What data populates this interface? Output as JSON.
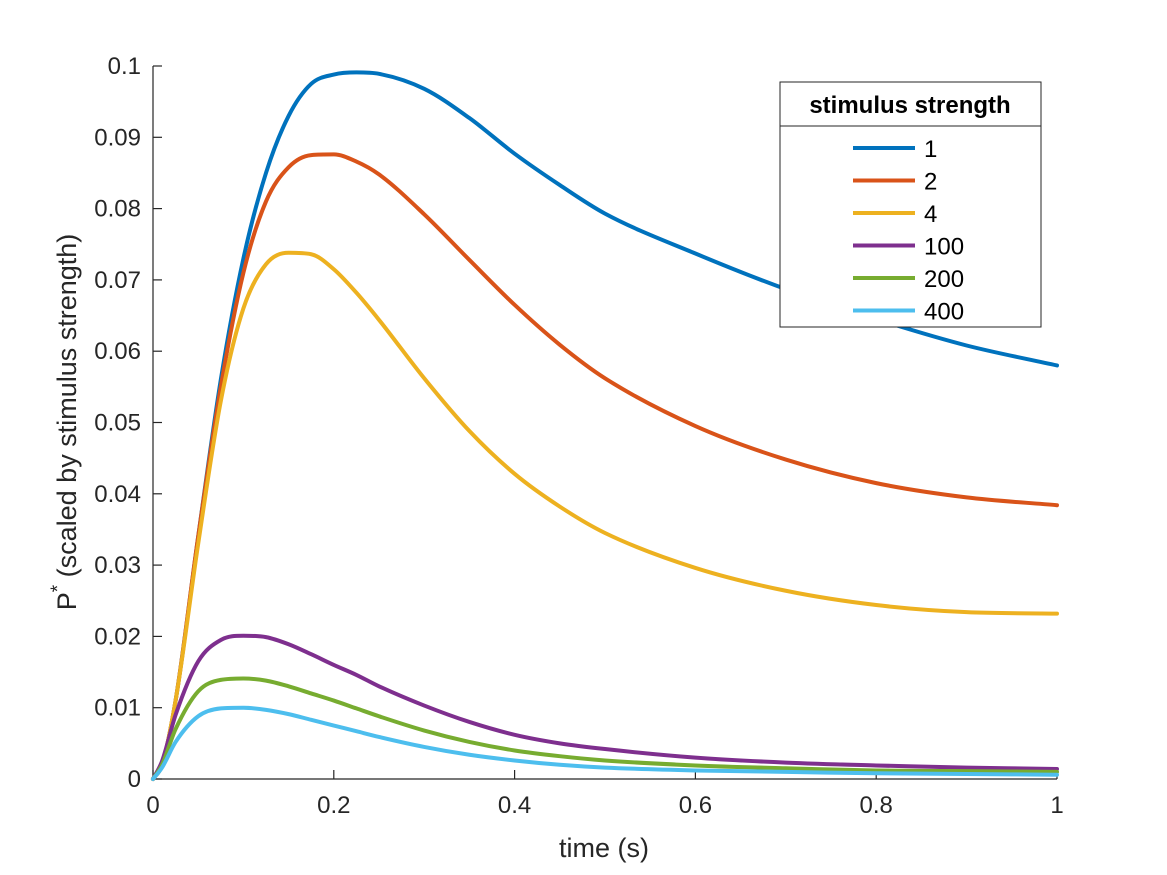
{
  "chart_data": {
    "type": "line",
    "title": "",
    "xlabel": "time (s)",
    "ylabel_main": "P",
    "ylabel_sup": "*",
    "ylabel_rest": " (scaled by stimulus strength)",
    "xlim": [
      0,
      1
    ],
    "ylim": [
      0,
      0.1
    ],
    "xticks": [
      0,
      0.2,
      0.4,
      0.6,
      0.8,
      1
    ],
    "xtick_labels": [
      "0",
      "0.2",
      "0.4",
      "0.6",
      "0.8",
      "1"
    ],
    "yticks": [
      0,
      0.01,
      0.02,
      0.03,
      0.04,
      0.05,
      0.06,
      0.07,
      0.08,
      0.09,
      0.1
    ],
    "ytick_labels": [
      "0",
      "0.01",
      "0.02",
      "0.03",
      "0.04",
      "0.05",
      "0.06",
      "0.07",
      "0.08",
      "0.09",
      "0.1"
    ],
    "grid": false,
    "legend": {
      "title": "stimulus strength",
      "placement": "top-right"
    },
    "x": [
      0,
      0.01,
      0.025,
      0.05,
      0.075,
      0.1,
      0.125,
      0.15,
      0.175,
      0.2,
      0.225,
      0.25,
      0.3,
      0.35,
      0.4,
      0.45,
      0.5,
      0.6,
      0.7,
      0.8,
      0.9,
      1.0
    ],
    "series": [
      {
        "name": "1",
        "color": "#0072BD",
        "values": [
          0,
          0.002,
          0.011,
          0.034,
          0.056,
          0.073,
          0.085,
          0.093,
          0.0975,
          0.0988,
          0.0991,
          0.0989,
          0.0968,
          0.0927,
          0.0877,
          0.0833,
          0.0793,
          0.0737,
          0.0687,
          0.0645,
          0.0608,
          0.058
        ]
      },
      {
        "name": "2",
        "color": "#D95319",
        "values": [
          0,
          0.002,
          0.011,
          0.034,
          0.055,
          0.071,
          0.081,
          0.0858,
          0.0875,
          0.0876,
          0.0866,
          0.0848,
          0.0792,
          0.0728,
          0.0665,
          0.0609,
          0.0562,
          0.0495,
          0.0448,
          0.0415,
          0.0395,
          0.0384
        ]
      },
      {
        "name": "4",
        "color": "#EDB120",
        "values": [
          0,
          0.002,
          0.011,
          0.033,
          0.053,
          0.066,
          0.0722,
          0.0738,
          0.0736,
          0.0715,
          0.0682,
          0.0644,
          0.0562,
          0.0488,
          0.0428,
          0.0382,
          0.0345,
          0.0296,
          0.0264,
          0.0244,
          0.0234,
          0.0232
        ]
      },
      {
        "name": "100",
        "color": "#7E2F8E",
        "values": [
          0,
          0.0025,
          0.009,
          0.0165,
          0.0195,
          0.0201,
          0.0199,
          0.0189,
          0.0175,
          0.016,
          0.0146,
          0.013,
          0.0103,
          0.008,
          0.0062,
          0.005,
          0.0042,
          0.003,
          0.0023,
          0.0019,
          0.0016,
          0.0014
        ]
      },
      {
        "name": "200",
        "color": "#77AC30",
        "values": [
          0,
          0.002,
          0.007,
          0.0123,
          0.0139,
          0.0141,
          0.0138,
          0.013,
          0.012,
          0.011,
          0.0099,
          0.0088,
          0.0068,
          0.0052,
          0.004,
          0.0032,
          0.0026,
          0.0019,
          0.0015,
          0.0012,
          0.0011,
          0.001
        ]
      },
      {
        "name": "400",
        "color": "#4DBEEE",
        "values": [
          0,
          0.0016,
          0.0052,
          0.0088,
          0.0099,
          0.01,
          0.0097,
          0.0091,
          0.0083,
          0.0075,
          0.0067,
          0.0059,
          0.0045,
          0.0034,
          0.0026,
          0.002,
          0.0016,
          0.0012,
          0.001,
          0.0008,
          0.0007,
          0.0006
        ]
      }
    ]
  }
}
